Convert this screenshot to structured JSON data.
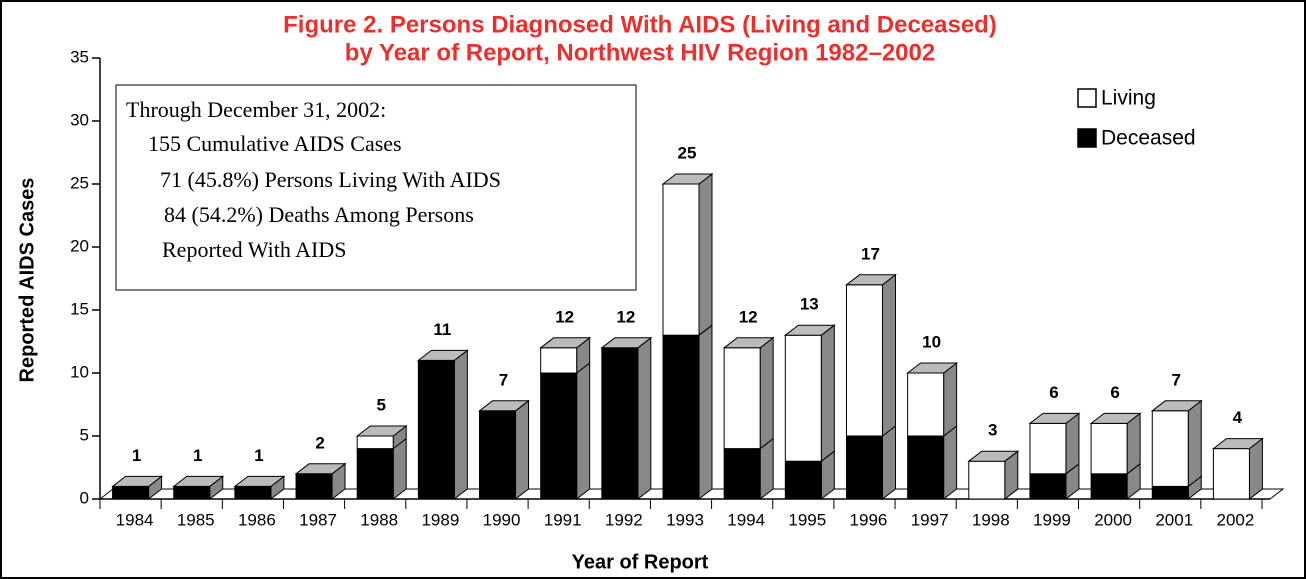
{
  "chart_data": {
    "type": "stacked_bar_3d",
    "title_lines": [
      "Figure 2. Persons Diagnosed With AIDS (Living and Deceased)",
      "by Year of Report, Northwest HIV Region 1982–2002"
    ],
    "x_label": "Year of Report",
    "y_label": "Reported AIDS Cases",
    "categories": [
      "1984",
      "1985",
      "1986",
      "1987",
      "1988",
      "1989",
      "1990",
      "1991",
      "1992",
      "1993",
      "1994",
      "1995",
      "1996",
      "1997",
      "1998",
      "1999",
      "2000",
      "2001",
      "2002"
    ],
    "series": [
      {
        "name": "Deceased",
        "color": "#000000",
        "values": [
          1,
          1,
          1,
          2,
          4,
          11,
          7,
          10,
          12,
          13,
          4,
          3,
          5,
          5,
          0,
          2,
          2,
          1,
          0
        ]
      },
      {
        "name": "Living",
        "color": "#ffffff",
        "values": [
          0,
          0,
          0,
          0,
          1,
          0,
          0,
          2,
          0,
          12,
          8,
          10,
          12,
          5,
          3,
          4,
          4,
          6,
          4
        ]
      }
    ],
    "totals": [
      1,
      1,
      1,
      2,
      5,
      11,
      7,
      12,
      12,
      25,
      12,
      13,
      17,
      10,
      3,
      6,
      6,
      7,
      4
    ],
    "ylim": [
      0,
      35
    ],
    "yticks": [
      0,
      5,
      10,
      15,
      20,
      25,
      30,
      35
    ],
    "legend": "upper right",
    "annotation_lines": [
      "Through December 31, 2002:",
      "155 Cumulative AIDS Cases",
      "71 (45.8%) Persons Living With AIDS",
      "84 (54.2%) Deaths Among Persons",
      "Reported With AIDS"
    ]
  }
}
